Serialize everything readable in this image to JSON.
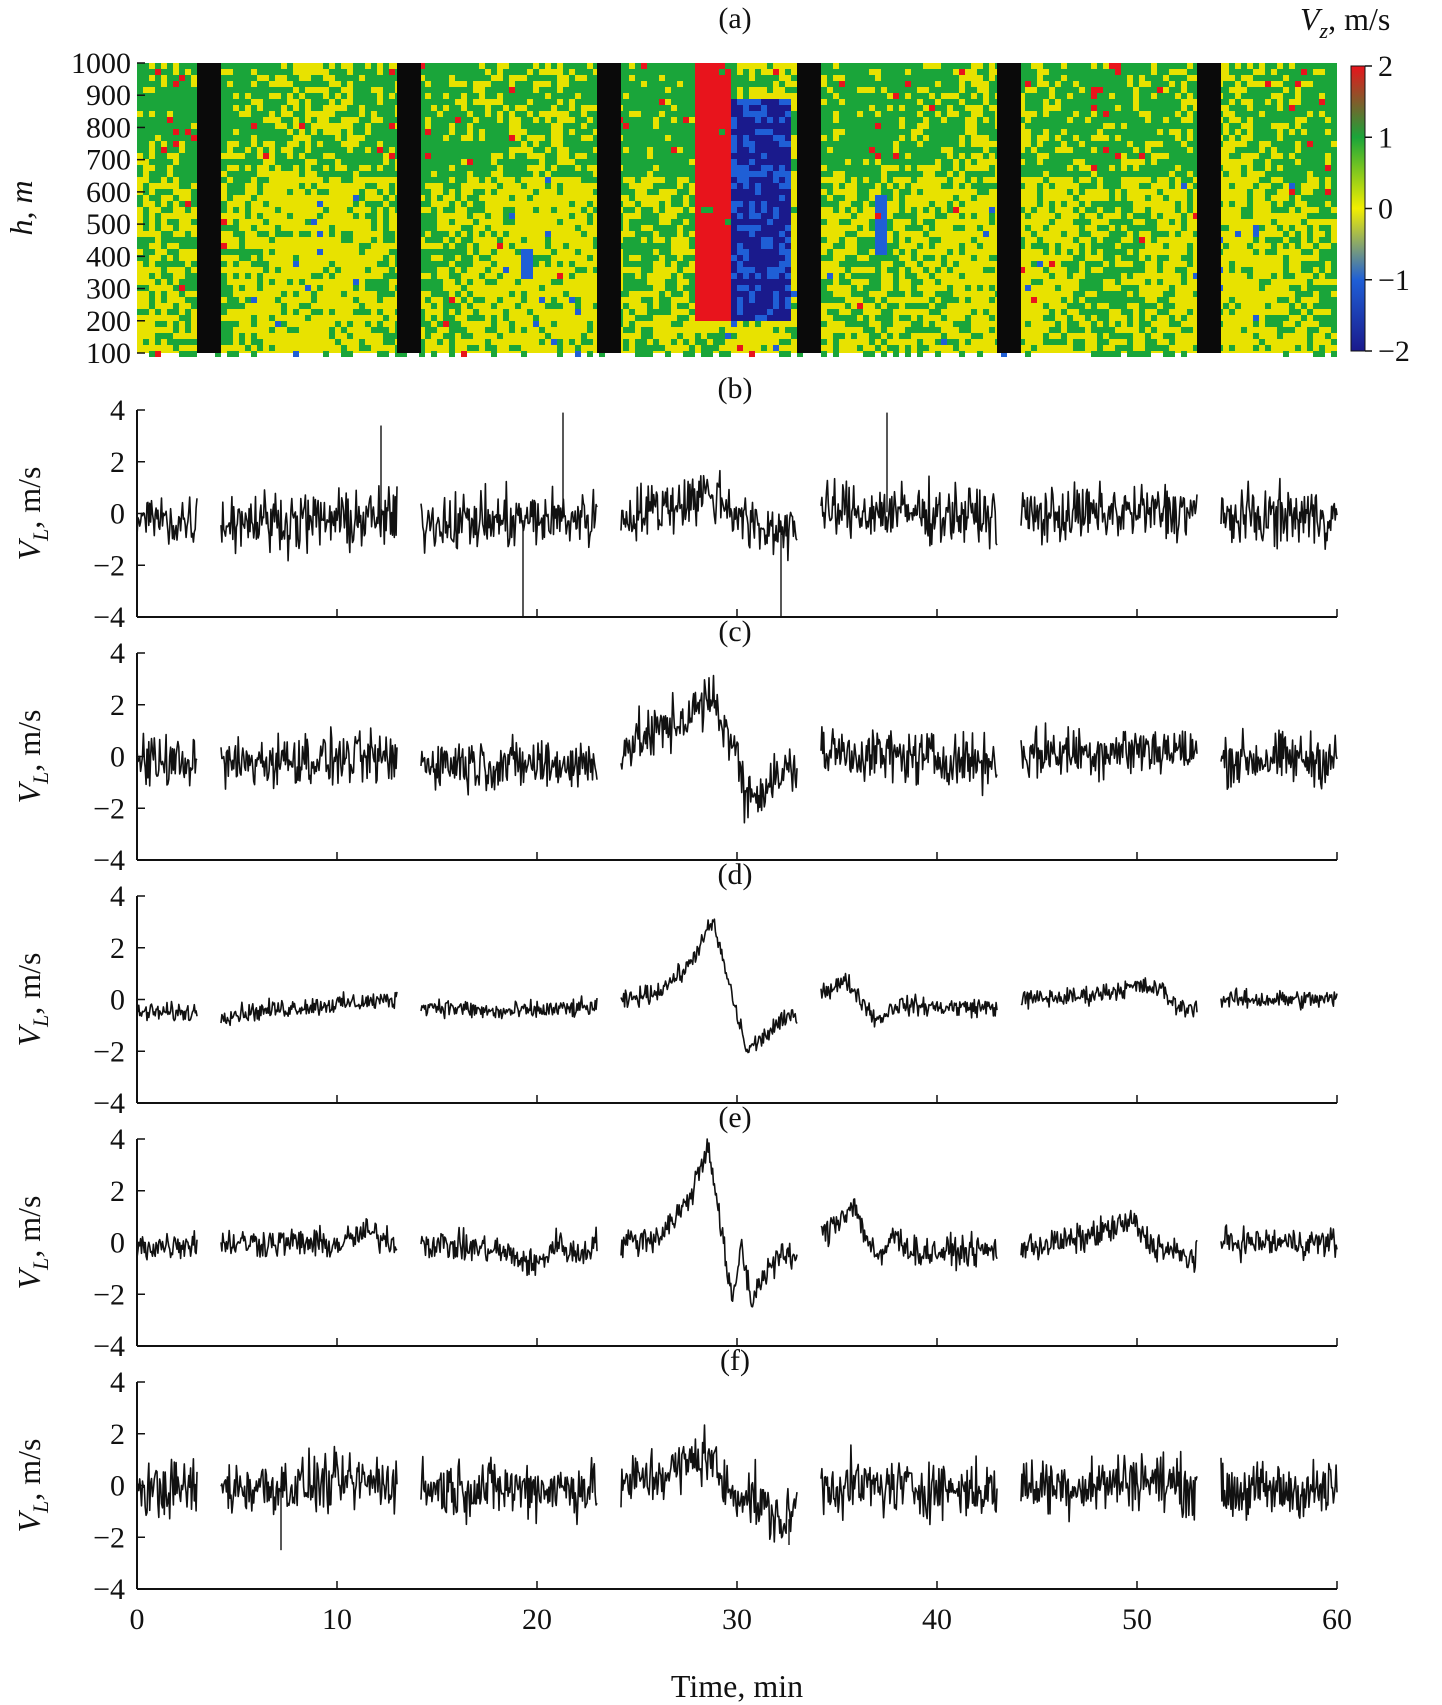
{
  "chart_data": [
    {
      "panel": "(a)",
      "type": "heatmap",
      "ylabel": "h, m",
      "ylim": [
        100,
        1000
      ],
      "yticks": [
        100,
        200,
        300,
        400,
        500,
        600,
        700,
        800,
        900,
        1000
      ],
      "xlim": [
        0,
        60
      ],
      "colorbar": {
        "label_var": "V",
        "label_sub": "z",
        "label_unit": ", m/s",
        "range": [
          -2,
          2
        ],
        "ticks": [
          "2",
          "1",
          "0",
          "−1",
          "−2"
        ],
        "colors": [
          "#1a1a8c",
          "#1f5fd6",
          "#f2ee00",
          "#1aa53a",
          "#e8141c"
        ]
      },
      "gaps_min": [
        [
          3.0,
          4.2
        ],
        [
          13.0,
          14.2
        ],
        [
          23.0,
          24.2
        ],
        [
          33.0,
          34.2
        ],
        [
          43.0,
          44.2
        ],
        [
          53.0,
          54.2
        ]
      ],
      "features": [
        {
          "kind": "updraft",
          "x_min": [
            27.8,
            29.6
          ],
          "h_m": [
            200,
            1000
          ],
          "value": 2.0
        },
        {
          "kind": "downdraft",
          "x_min": [
            29.5,
            32.5
          ],
          "h_m": [
            200,
            900
          ],
          "value": -1.6
        },
        {
          "kind": "downdraft",
          "x_min": [
            19.2,
            19.6
          ],
          "h_m": [
            330,
            430
          ],
          "value": -1.0
        },
        {
          "kind": "downdraft",
          "x_min": [
            36.8,
            37.3
          ],
          "h_m": [
            420,
            600
          ],
          "value": -1.0
        }
      ]
    },
    {
      "panel": "(b)",
      "type": "line",
      "ylabel_var": "V",
      "ylabel_sub": "L",
      "ylabel_unit": ", m/s",
      "ylim": [
        -4,
        4
      ],
      "yticks": [
        "4",
        "2",
        "0",
        "−2",
        "−4"
      ],
      "x": [
        0,
        2,
        5,
        8,
        12,
        14.5,
        18,
        21,
        24.5,
        27,
        28.5,
        29.5,
        31,
        32.5,
        35,
        40,
        43,
        44.5,
        48,
        53,
        54.5,
        57,
        60
      ],
      "y": [
        -0.2,
        -0.3,
        -0.2,
        -0.3,
        -0.2,
        -0.3,
        -0.3,
        -0.2,
        -0.1,
        0.4,
        0.8,
        0.4,
        -0.7,
        -0.5,
        0.1,
        0.0,
        -0.1,
        -0.1,
        0.0,
        0.1,
        -0.2,
        -0.1,
        -0.1
      ],
      "noise": 0.55,
      "spikes": [
        [
          12.2,
          3.4
        ],
        [
          19.3,
          -4.0
        ],
        [
          21.3,
          3.9
        ],
        [
          32.2,
          -4.0
        ],
        [
          37.5,
          3.9
        ]
      ]
    },
    {
      "panel": "(c)",
      "type": "line",
      "ylabel_var": "V",
      "ylabel_sub": "L",
      "ylabel_unit": ", m/s",
      "ylim": [
        -4,
        4
      ],
      "yticks": [
        "4",
        "2",
        "0",
        "−2",
        "−4"
      ],
      "x": [
        0,
        3,
        4.2,
        8,
        13,
        14.2,
        18,
        23,
        24.2,
        27,
        28.8,
        29.8,
        30.5,
        32,
        33,
        34.2,
        38,
        43,
        44.2,
        48,
        51,
        53,
        54.2,
        60
      ],
      "y": [
        -0.2,
        -0.2,
        -0.3,
        -0.1,
        -0.1,
        -0.2,
        -0.3,
        -0.3,
        0.3,
        1.3,
        2.2,
        0.5,
        -1.6,
        -0.8,
        -0.4,
        0.2,
        0.0,
        -0.2,
        0.1,
        0.2,
        0.3,
        0.1,
        -0.1,
        -0.1
      ],
      "noise": 0.5,
      "spikes": []
    },
    {
      "panel": "(d)",
      "type": "line",
      "ylabel_var": "V",
      "ylabel_sub": "L",
      "ylabel_unit": ", m/s",
      "ylim": [
        -4,
        4
      ],
      "yticks": [
        "4",
        "2",
        "0",
        "−2",
        "−4"
      ],
      "x": [
        0,
        3,
        4.2,
        8,
        13,
        14.2,
        18,
        23,
        24.2,
        26,
        27.5,
        28.8,
        29.8,
        30.5,
        32,
        33,
        34.2,
        35.5,
        37,
        38,
        40,
        43,
        44.2,
        47,
        50,
        51.2,
        52,
        53,
        54.2,
        60
      ],
      "y": [
        -0.5,
        -0.5,
        -0.6,
        -0.3,
        0.0,
        -0.2,
        -0.5,
        -0.3,
        -0.1,
        0.3,
        1.2,
        3.0,
        0.0,
        -2.0,
        -1.0,
        -0.5,
        0.3,
        0.7,
        -0.8,
        -0.2,
        -0.3,
        -0.3,
        0.0,
        0.1,
        0.5,
        0.4,
        -0.3,
        -0.3,
        0.0,
        0.0
      ],
      "noise": 0.18,
      "spikes": []
    },
    {
      "panel": "(e)",
      "type": "line",
      "ylabel_var": "V",
      "ylabel_sub": "L",
      "ylabel_unit": ", m/s",
      "ylim": [
        -4,
        4
      ],
      "yticks": [
        "4",
        "2",
        "0",
        "−2",
        "−4"
      ],
      "x": [
        0,
        3,
        4.2,
        8,
        10,
        11.5,
        13,
        14.2,
        18,
        20,
        21,
        22,
        23,
        24.2,
        26,
        27.5,
        28.6,
        29.2,
        29.8,
        30.2,
        30.7,
        31.2,
        32,
        33,
        34.2,
        35.8,
        36.6,
        37.2,
        37.7,
        39,
        43,
        44.2,
        47,
        49.8,
        50.6,
        52.5,
        53,
        54.2,
        60
      ],
      "y": [
        -0.2,
        0.0,
        0.0,
        0.0,
        -0.1,
        0.4,
        0.0,
        0.0,
        -0.3,
        -0.9,
        0.0,
        -0.5,
        0.0,
        0.0,
        0.2,
        1.5,
        3.8,
        0.5,
        -2.5,
        0.0,
        -2.3,
        -1.4,
        -0.6,
        -0.5,
        0.2,
        1.5,
        0.0,
        -0.8,
        0.3,
        -0.4,
        -0.3,
        -0.2,
        0.1,
        0.8,
        0.0,
        -0.6,
        -0.5,
        0.0,
        0.0
      ],
      "noise": 0.28,
      "spikes": []
    },
    {
      "panel": "(f)",
      "type": "line",
      "ylabel_var": "V",
      "ylabel_sub": "L",
      "ylabel_unit": ", m/s",
      "ylim": [
        -4,
        4
      ],
      "yticks": [
        "4",
        "2",
        "0",
        "−2",
        "−4"
      ],
      "x": [
        0,
        3,
        4.2,
        8,
        13,
        14.2,
        18,
        23,
        24.2,
        27,
        28.5,
        29.5,
        30.5,
        31.5,
        32.5,
        33,
        34.2,
        40,
        43,
        44.2,
        48,
        50,
        53,
        54.2,
        60
      ],
      "y": [
        -0.2,
        -0.1,
        -0.1,
        0.0,
        0.2,
        -0.1,
        -0.1,
        -0.1,
        0.0,
        0.6,
        1.3,
        -0.2,
        -0.3,
        -1.0,
        -1.5,
        -0.5,
        0.0,
        -0.1,
        -0.2,
        0.0,
        0.0,
        0.3,
        -0.1,
        -0.2,
        -0.2
      ],
      "noise": 0.55,
      "spikes": [
        [
          7.2,
          -2.5
        ],
        [
          32.6,
          -2.3
        ]
      ]
    }
  ],
  "shared_x": {
    "label": "Time, min",
    "range": [
      0,
      60
    ],
    "ticks": [
      "0",
      "10",
      "20",
      "30",
      "40",
      "50",
      "60"
    ],
    "segments_min": [
      [
        0,
        3.0
      ],
      [
        4.2,
        13.0
      ],
      [
        14.2,
        23.0
      ],
      [
        24.2,
        33.0
      ],
      [
        34.2,
        43.0
      ],
      [
        44.2,
        53.0
      ],
      [
        54.2,
        60
      ]
    ]
  },
  "colors": {
    "series": "#111111",
    "gap": "#0a0a0a",
    "axis": "#111111"
  }
}
